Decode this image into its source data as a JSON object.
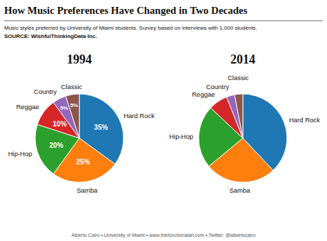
{
  "title": "How Music Preferences Have Changed in Two Decades",
  "subtitle": "Music styles preferred by University of Miami students. Survey based on interviews with 1,000 students.",
  "annotations": [
    "SOURCE: WishfulThinkingData Inc.",
    "Alberto Cairo  •  University of Miami  •  www.thefunctionalart.com  •  Twitter: @albertocairo"
  ],
  "chart_data": [
    {
      "type": "pie",
      "title": "1994",
      "categories": [
        "Hard Rock",
        "Samba",
        "Hip-Hop",
        "Reggae",
        "Country",
        "Classic"
      ],
      "values": [
        35,
        25,
        20,
        10,
        5,
        5
      ],
      "value_labels": [
        "35%",
        "25%",
        "20%",
        "10%",
        "5%",
        "5%"
      ],
      "data_labels": true
    },
    {
      "type": "pie",
      "title": "2014",
      "categories": [
        "Hard Rock",
        "Samba",
        "Hip-Hop",
        "Reggae",
        "Country",
        "Classic"
      ],
      "values": [
        38,
        26,
        23,
        7,
        3,
        3
      ],
      "data_labels": false
    }
  ]
}
